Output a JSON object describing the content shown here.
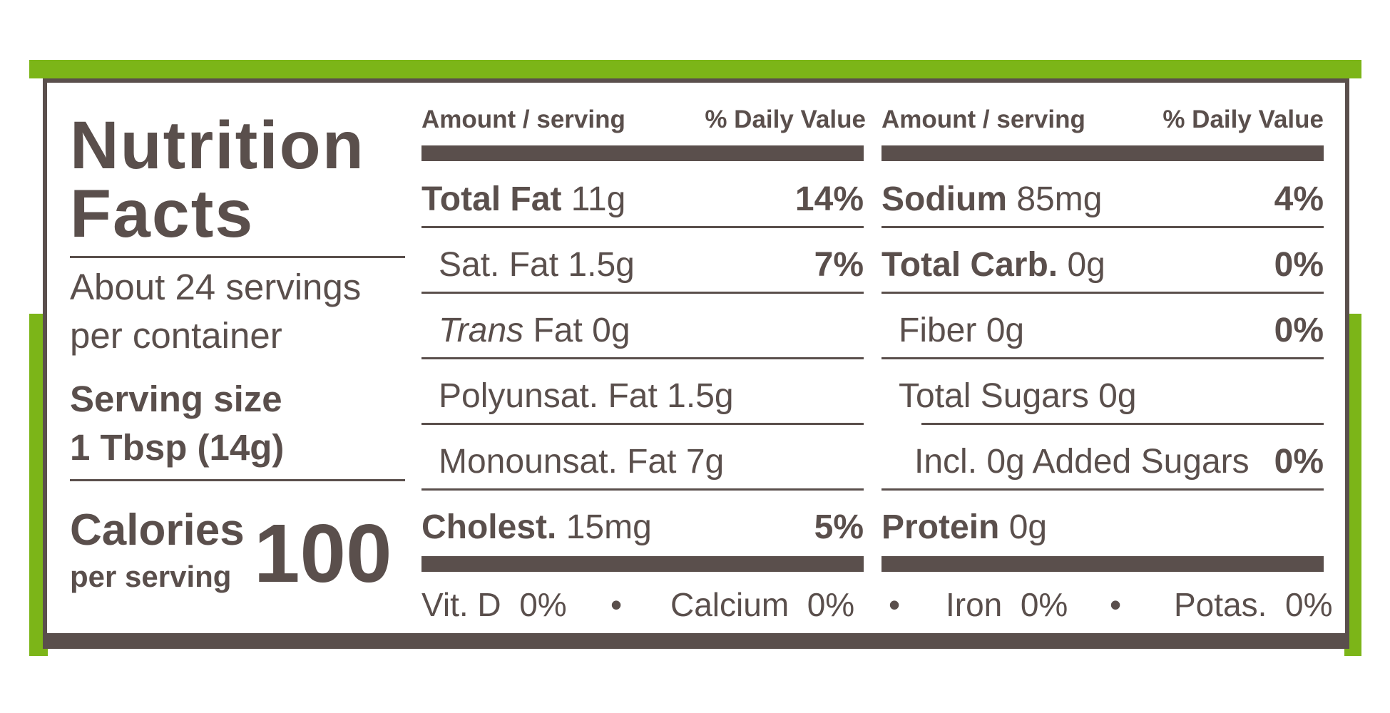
{
  "colors": {
    "green": "#7cb518",
    "brown": "#5a4f4c"
  },
  "title": [
    "Nutrition",
    "Facts"
  ],
  "servings": [
    "About 24 servings",
    "per container"
  ],
  "serving_size_label": "Serving size",
  "serving_size_value": "1 Tbsp (14g)",
  "calories": {
    "label": "Calories",
    "sub": "per serving",
    "value": "100"
  },
  "headers": {
    "amount": "Amount / serving",
    "dv": "% Daily Value"
  },
  "left_rows": [
    {
      "bold": "Total Fat",
      "text": " 11g",
      "pct": "14%"
    },
    {
      "bold": "",
      "text": "Sat. Fat 1.5g",
      "pct": "7%"
    },
    {
      "italic": "Trans",
      "text": " Fat 0g",
      "pct": ""
    },
    {
      "bold": "",
      "text": "Polyunsat. Fat 1.5g",
      "pct": ""
    },
    {
      "bold": "",
      "text": "Monounsat. Fat 7g",
      "pct": ""
    },
    {
      "bold": "Cholest.",
      "text": " 15mg",
      "pct": "5%"
    }
  ],
  "right_rows": [
    {
      "bold": "Sodium",
      "text": " 85mg",
      "pct": "4%"
    },
    {
      "bold": "Total Carb.",
      "text": " 0g",
      "pct": "0%"
    },
    {
      "bold": "",
      "text": "Fiber 0g",
      "pct": "0%"
    },
    {
      "bold": "",
      "text": "Total Sugars 0g",
      "pct": ""
    },
    {
      "bold": "",
      "text": "Incl. 0g Added Sugars",
      "pct": "0%"
    },
    {
      "bold": "Protein",
      "text": " 0g",
      "pct": ""
    }
  ],
  "vitamins": [
    {
      "name": "Vit. D",
      "value": "0%"
    },
    {
      "name": "Calcium",
      "value": "0%"
    },
    {
      "name": "Iron",
      "value": "0%"
    },
    {
      "name": "Potas.",
      "value": "0%"
    }
  ],
  "bullet": "•"
}
